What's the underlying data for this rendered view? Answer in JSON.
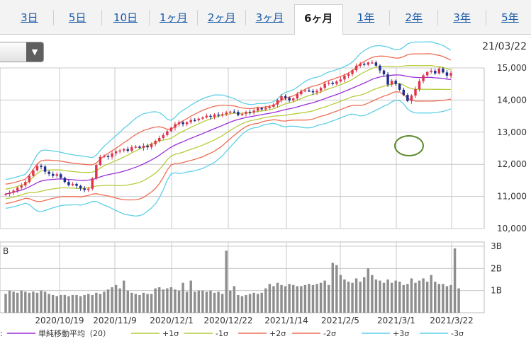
{
  "tabs": [
    {
      "label": "3日",
      "active": false
    },
    {
      "label": "5日",
      "active": false
    },
    {
      "label": "10日",
      "active": false
    },
    {
      "label": "1ヶ月",
      "active": false
    },
    {
      "label": "2ヶ月",
      "active": false
    },
    {
      "label": "3ヶ月",
      "active": false
    },
    {
      "label": "6ヶ月",
      "active": true
    },
    {
      "label": "1年",
      "active": false
    },
    {
      "label": "2年",
      "active": false
    },
    {
      "label": "3年",
      "active": false
    },
    {
      "label": "5年",
      "active": false
    }
  ],
  "header": {
    "date": "21/03/22",
    "dropdown_icon": "triangle-down-icon"
  },
  "colors": {
    "candle_up": "#e0344a",
    "candle_down": "#1f2d8c",
    "volume": "#8e8e8e",
    "sma": "#9b2fd6",
    "sigma1": "#b7cc3d",
    "sigma2": "#ee6e55",
    "sigma3": "#5fd0e6",
    "grid": "#c9c9c9",
    "annotation": "#5a8a2a"
  },
  "chart_data": {
    "type": "candlestick",
    "price_axis": {
      "ylim": [
        10000,
        15000
      ],
      "ticks": [
        "10,000",
        "11,000",
        "12,000",
        "13,000",
        "14,000",
        "15,000"
      ]
    },
    "volume_axis": {
      "ticks": [
        "1B",
        "2B",
        "3B"
      ],
      "corner_label": "B"
    },
    "x_tick_labels": [
      "2020/10/19",
      "2020/11/9",
      "2020/12/1",
      "2020/12/22",
      "2021/1/14",
      "2021/2/5",
      "2021/3/1",
      "2021/3/22"
    ],
    "price_start": 11050,
    "price_changes": [
      30,
      40,
      60,
      90,
      70,
      110,
      190,
      170,
      140,
      -20,
      -160,
      -70,
      -60,
      50,
      -110,
      -130,
      -100,
      40,
      -60,
      -80,
      -50,
      40,
      320,
      420,
      250,
      30,
      -30,
      110,
      60,
      30,
      40,
      -50,
      110,
      20,
      -40,
      70,
      -50,
      100,
      100,
      90,
      90,
      120,
      110,
      110,
      60,
      -60,
      60,
      70,
      -10,
      50,
      40,
      50,
      -30,
      70,
      -20,
      30,
      50,
      30,
      -10,
      -100,
      40,
      60,
      -20,
      60,
      80,
      -40,
      40,
      40,
      70,
      140,
      120,
      -50,
      -80,
      60,
      130,
      100,
      20,
      -20,
      -40,
      50,
      90,
      130,
      30,
      -40,
      80,
      60,
      120,
      50,
      120,
      140,
      60,
      -30,
      70,
      0,
      -100,
      -150,
      -120,
      -320,
      120,
      -100,
      -180,
      -160,
      -190,
      170,
      200,
      250,
      180,
      100,
      40,
      -80,
      150,
      -120,
      -100,
      80
    ],
    "volume": [
      0.85,
      1.0,
      0.95,
      0.9,
      1.0,
      0.95,
      0.9,
      0.95,
      0.9,
      1.0,
      0.95,
      0.85,
      0.8,
      0.75,
      0.8,
      0.8,
      0.75,
      0.8,
      0.8,
      0.75,
      0.8,
      0.85,
      0.8,
      0.9,
      0.85,
      0.95,
      1.05,
      1.15,
      1.25,
      1.1,
      1.45,
      1.0,
      0.9,
      0.85,
      0.8,
      0.9,
      0.85,
      0.85,
      1.1,
      1.15,
      1.05,
      1.1,
      1.15,
      1.05,
      1.0,
      1.35,
      0.95,
      1.45,
      0.95,
      1.0,
      1.0,
      0.95,
      1.0,
      0.9,
      0.95,
      0.85,
      2.8,
      1.0,
      1.2,
      0.8,
      0.75,
      0.8,
      0.85,
      0.9,
      0.85,
      0.9,
      1.1,
      1.3,
      1.2,
      1.35,
      1.25,
      1.2,
      1.3,
      1.25,
      1.2,
      1.2,
      1.25,
      1.3,
      1.25,
      1.3,
      1.35,
      1.45,
      1.25,
      2.25,
      2.15,
      1.7,
      1.5,
      1.4,
      1.35,
      1.55,
      1.4,
      1.6,
      2.0,
      1.7,
      1.5,
      1.45,
      1.35,
      1.5,
      1.35,
      1.45,
      1.4,
      1.25,
      1.3,
      1.55,
      1.35,
      1.45,
      1.55,
      1.4,
      1.7,
      1.4,
      1.3,
      1.3,
      1.2,
      1.25,
      2.9,
      1.1
    ],
    "series": [
      {
        "name": "単純移動平均（20）",
        "key": "sma"
      },
      {
        "name": "+1σ",
        "key": "sigma1"
      },
      {
        "name": "-1σ",
        "key": "sigma1"
      },
      {
        "name": "+2σ",
        "key": "sigma2"
      },
      {
        "name": "-2σ",
        "key": "sigma2"
      },
      {
        "name": "+3σ",
        "key": "sigma3"
      },
      {
        "name": "-3σ",
        "key": "sigma3"
      }
    ],
    "legend_lead": ":"
  }
}
